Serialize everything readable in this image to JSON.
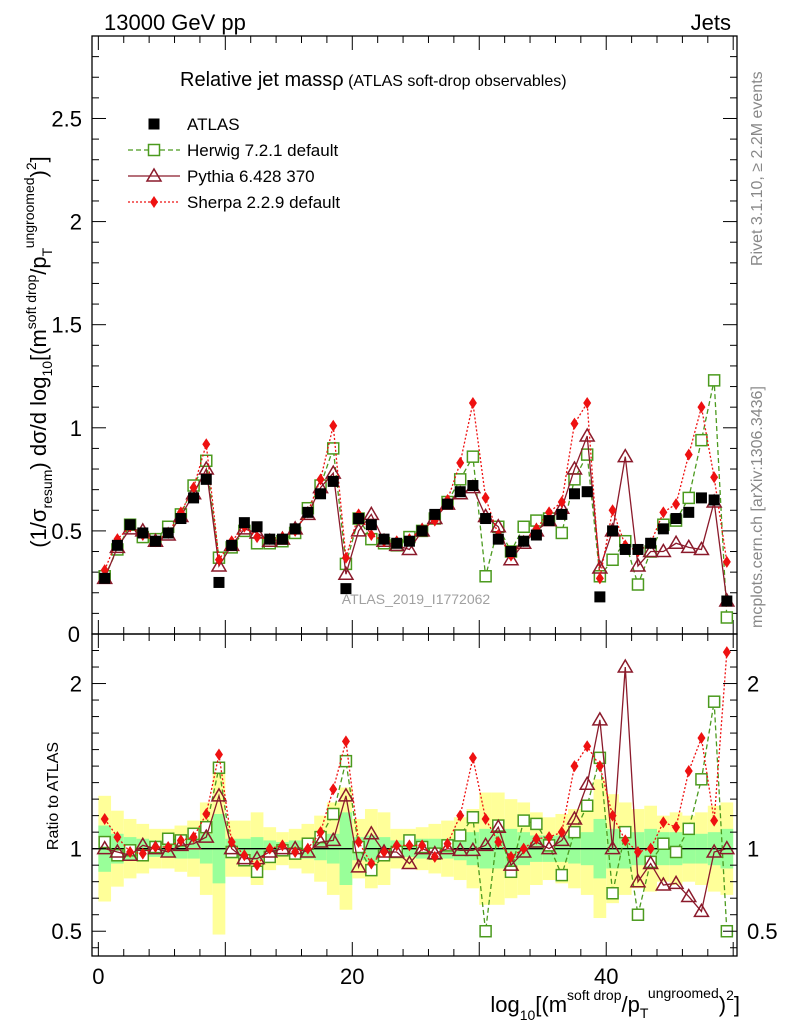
{
  "header": {
    "energy": "13000 GeV pp",
    "category": "Jets"
  },
  "side_text": {
    "rivet": "Rivet 3.1.10, ≥ 2.2M events",
    "mcplots": "mcplots.cern.ch [arXiv:1306.3436]"
  },
  "watermark": "ATLAS_2019_I1772062",
  "colors": {
    "data": "#000000",
    "herwig": "#4b9a1e",
    "pythia": "#8b1a2b",
    "sherpa": "#ee1111",
    "band_inner": "#99ff99",
    "band_outer": "#ffff99"
  },
  "chart_data": [
    {
      "type": "scatter",
      "panel": "main",
      "title_main": "Relative jet massρ",
      "title_sub": " (ATLAS soft-drop observables)",
      "xlabel": "log10[(m^soft drop/pT^ungroomed)^2]",
      "ylabel": "(1/σresum) dσ/d log10[(m^soft drop/pT^ungroomed)^2]",
      "xlim": [
        -0.5,
        50.3
      ],
      "ylim": [
        0,
        2.9
      ],
      "xticks": [
        0,
        20,
        40
      ],
      "yticks": [
        0.5,
        1,
        1.5,
        2,
        2.5
      ],
      "ytick_labels": [
        "0.5",
        "1",
        "1.5",
        "2",
        "2.5"
      ],
      "ytick_zero_label": "0",
      "legend_position": "top-left",
      "series": [
        {
          "name": "ATLAS",
          "marker": "filled-square",
          "x": [
            0.5,
            1.5,
            2.5,
            3.5,
            4.5,
            5.5,
            6.5,
            7.5,
            8.5,
            9.5,
            10.5,
            11.5,
            12.5,
            13.5,
            14.5,
            15.5,
            16.5,
            17.5,
            18.5,
            19.5,
            20.5,
            21.5,
            22.5,
            23.5,
            24.5,
            25.5,
            26.5,
            27.5,
            28.5,
            29.5,
            30.5,
            31.5,
            32.5,
            33.5,
            34.5,
            35.5,
            36.5,
            37.5,
            38.5,
            39.5,
            40.5,
            41.5,
            42.5,
            43.5,
            44.5,
            45.5,
            46.5,
            47.5,
            48.5,
            49.5
          ],
          "values": [
            0.27,
            0.43,
            0.53,
            0.49,
            0.45,
            0.49,
            0.56,
            0.66,
            0.75,
            0.25,
            0.43,
            0.54,
            0.52,
            0.46,
            0.46,
            0.51,
            0.59,
            0.68,
            0.74,
            0.22,
            0.56,
            0.53,
            0.46,
            0.44,
            0.45,
            0.5,
            0.58,
            0.63,
            0.69,
            0.72,
            0.56,
            0.46,
            0.4,
            0.45,
            0.48,
            0.55,
            0.58,
            0.68,
            0.69,
            0.18,
            0.5,
            0.41,
            0.41,
            0.44,
            0.51,
            0.56,
            0.59,
            0.66,
            0.65,
            0.16
          ]
        },
        {
          "name": "Herwig 7.2.1 default",
          "marker": "open-square",
          "line": "dashed",
          "x": [
            0.5,
            1.5,
            2.5,
            3.5,
            4.5,
            5.5,
            6.5,
            7.5,
            8.5,
            9.5,
            10.5,
            11.5,
            12.5,
            13.5,
            14.5,
            15.5,
            16.5,
            17.5,
            18.5,
            19.5,
            20.5,
            21.5,
            22.5,
            23.5,
            24.5,
            25.5,
            26.5,
            27.5,
            28.5,
            29.5,
            30.5,
            31.5,
            32.5,
            33.5,
            34.5,
            35.5,
            36.5,
            37.5,
            38.5,
            39.5,
            40.5,
            41.5,
            42.5,
            43.5,
            44.5,
            45.5,
            46.5,
            47.5,
            48.5,
            49.5
          ],
          "values": [
            0.28,
            0.41,
            0.53,
            0.47,
            0.46,
            0.52,
            0.58,
            0.72,
            0.84,
            0.37,
            0.42,
            0.5,
            0.44,
            0.44,
            0.45,
            0.49,
            0.61,
            0.72,
            0.9,
            0.34,
            0.56,
            0.46,
            0.44,
            0.43,
            0.47,
            0.5,
            0.56,
            0.64,
            0.75,
            0.86,
            0.28,
            0.52,
            0.4,
            0.52,
            0.55,
            0.56,
            0.49,
            0.75,
            0.87,
            0.28,
            0.36,
            0.45,
            0.24,
            0.4,
            0.53,
            0.55,
            0.66,
            0.94,
            1.23,
            0.08
          ],
          "ratio": [
            1.04,
            0.96,
            0.99,
            0.96,
            1.01,
            1.06,
            1.05,
            1.09,
            1.13,
            1.49,
            0.98,
            0.93,
            0.86,
            0.95,
            0.99,
            0.97,
            1.03,
            1.07,
            1.21,
            1.53,
            1.01,
            0.87,
            0.96,
            0.98,
            1.05,
            1.01,
            0.97,
            1.02,
            1.08,
            1.19,
            0.5,
            1.14,
            0.86,
            1.17,
            1.15,
            1.02,
            0.84,
            1.1,
            1.26,
            1.55,
            0.73,
            1.1,
            0.6,
            0.92,
            1.03,
            0.98,
            1.12,
            1.42,
            1.89,
            0.5
          ]
        },
        {
          "name": "Pythia 6.428 370",
          "marker": "open-triangle",
          "line": "solid",
          "x": [
            0.5,
            1.5,
            2.5,
            3.5,
            4.5,
            5.5,
            6.5,
            7.5,
            8.5,
            9.5,
            10.5,
            11.5,
            12.5,
            13.5,
            14.5,
            15.5,
            16.5,
            17.5,
            18.5,
            19.5,
            20.5,
            21.5,
            22.5,
            23.5,
            24.5,
            25.5,
            26.5,
            27.5,
            28.5,
            29.5,
            30.5,
            31.5,
            32.5,
            33.5,
            34.5,
            35.5,
            36.5,
            37.5,
            38.5,
            39.5,
            40.5,
            41.5,
            42.5,
            43.5,
            44.5,
            45.5,
            46.5,
            47.5,
            48.5,
            49.5
          ],
          "values": [
            0.27,
            0.42,
            0.51,
            0.5,
            0.45,
            0.48,
            0.57,
            0.68,
            0.8,
            0.33,
            0.43,
            0.51,
            0.49,
            0.45,
            0.46,
            0.51,
            0.58,
            0.71,
            0.78,
            0.29,
            0.5,
            0.58,
            0.45,
            0.43,
            0.41,
            0.5,
            0.56,
            0.63,
            0.68,
            0.71,
            0.57,
            0.52,
            0.36,
            0.44,
            0.5,
            0.55,
            0.61,
            0.8,
            0.96,
            0.32,
            0.5,
            0.86,
            0.33,
            0.4,
            0.4,
            0.44,
            0.42,
            0.41,
            0.64,
            0.16
          ],
          "ratio": [
            1.0,
            0.98,
            0.96,
            1.02,
            1.0,
            0.98,
            1.02,
            1.03,
            1.07,
            1.32,
            1.0,
            0.94,
            0.94,
            0.98,
            1.0,
            1.0,
            0.98,
            1.04,
            1.05,
            1.32,
            0.89,
            1.09,
            0.98,
            0.98,
            0.91,
            1.0,
            0.97,
            1.0,
            0.99,
            0.99,
            1.02,
            1.13,
            0.9,
            0.98,
            1.04,
            1.0,
            1.05,
            1.18,
            1.39,
            1.78,
            1.0,
            2.1,
            0.8,
            0.91,
            0.78,
            0.79,
            0.71,
            0.62,
            0.98,
            1.0
          ]
        },
        {
          "name": "Sherpa 2.2.9 default",
          "marker": "filled-diamond",
          "line": "dotted",
          "x": [
            0.5,
            1.5,
            2.5,
            3.5,
            4.5,
            5.5,
            6.5,
            7.5,
            8.5,
            9.5,
            10.5,
            11.5,
            12.5,
            13.5,
            14.5,
            15.5,
            16.5,
            17.5,
            18.5,
            19.5,
            20.5,
            21.5,
            22.5,
            23.5,
            24.5,
            25.5,
            26.5,
            27.5,
            28.5,
            29.5,
            30.5,
            31.5,
            32.5,
            33.5,
            34.5,
            35.5,
            36.5,
            37.5,
            38.5,
            39.5,
            40.5,
            41.5,
            42.5,
            43.5,
            44.5,
            45.5,
            46.5,
            47.5,
            48.5,
            49.5
          ],
          "values": [
            0.31,
            0.46,
            0.52,
            0.48,
            0.45,
            0.49,
            0.59,
            0.71,
            0.92,
            0.36,
            0.45,
            0.52,
            0.47,
            0.46,
            0.47,
            0.5,
            0.59,
            0.75,
            1.01,
            0.37,
            0.58,
            0.48,
            0.45,
            0.45,
            0.46,
            0.51,
            0.55,
            0.65,
            0.83,
            1.12,
            0.66,
            0.48,
            0.38,
            0.45,
            0.51,
            0.59,
            0.64,
            1.02,
            1.12,
            0.27,
            0.6,
            0.43,
            0.4,
            0.44,
            0.59,
            0.63,
            0.87,
            1.1,
            0.76,
            0.35
          ],
          "ratio": [
            1.18,
            1.07,
            0.98,
            0.97,
            1.01,
            1.01,
            1.05,
            1.07,
            1.21,
            1.57,
            1.04,
            0.96,
            0.9,
            1.0,
            1.02,
            0.98,
            1.0,
            1.1,
            1.36,
            1.65,
            1.04,
            0.91,
            0.98,
            1.02,
            1.02,
            1.02,
            0.95,
            1.03,
            1.2,
            1.55,
            1.18,
            1.04,
            0.95,
            1.0,
            1.06,
            1.07,
            1.1,
            1.5,
            1.62,
            1.5,
            1.2,
            1.05,
            0.98,
            1.0,
            1.16,
            1.13,
            1.47,
            1.67,
            1.17,
            2.19
          ]
        }
      ]
    },
    {
      "type": "scatter",
      "panel": "ratio",
      "ylabel": "Ratio to ATLAS",
      "xlim": [
        -0.5,
        50.3
      ],
      "ylim": [
        0.35,
        2.3
      ],
      "yticks": [
        0.5,
        1,
        2
      ],
      "ytick_labels": [
        "0.5",
        "1",
        "2"
      ],
      "xtick_labels": [
        "0",
        "20",
        "40"
      ],
      "data_uncertainty_inner": [
        0.14,
        0.09,
        0.07,
        0.06,
        0.05,
        0.05,
        0.06,
        0.06,
        0.09,
        0.21,
        0.06,
        0.06,
        0.07,
        0.05,
        0.04,
        0.05,
        0.06,
        0.07,
        0.09,
        0.22,
        0.07,
        0.08,
        0.07,
        0.05,
        0.05,
        0.06,
        0.06,
        0.06,
        0.07,
        0.1,
        0.12,
        0.12,
        0.12,
        0.1,
        0.08,
        0.08,
        0.08,
        0.09,
        0.1,
        0.18,
        0.12,
        0.12,
        0.1,
        0.12,
        0.1,
        0.1,
        0.09,
        0.09,
        0.1,
        0.12
      ],
      "data_uncertainty_outer": [
        0.32,
        0.23,
        0.18,
        0.15,
        0.12,
        0.12,
        0.14,
        0.17,
        0.28,
        0.52,
        0.17,
        0.17,
        0.22,
        0.13,
        0.1,
        0.12,
        0.15,
        0.2,
        0.28,
        0.37,
        0.18,
        0.24,
        0.22,
        0.12,
        0.12,
        0.13,
        0.15,
        0.17,
        0.19,
        0.24,
        0.34,
        0.34,
        0.3,
        0.28,
        0.22,
        0.19,
        0.21,
        0.24,
        0.28,
        0.42,
        0.33,
        0.28,
        0.24,
        0.26,
        0.2,
        0.22,
        0.2,
        0.22,
        0.26,
        0.28
      ]
    }
  ]
}
